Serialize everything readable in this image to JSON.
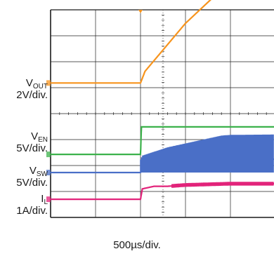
{
  "chart_data": {
    "type": "line",
    "title": "",
    "xlabel": "500µs/div.",
    "x_unit": "µs",
    "x_divisions": 8,
    "y_divisions": 8,
    "grid": true,
    "series": [
      {
        "name": "VOUT",
        "label_main": "V",
        "label_sub": "OUT",
        "scale": "2V/div.",
        "unit": "V",
        "color": "#f7941d",
        "ground_div": 5.18,
        "points": [
          [
            0,
            0
          ],
          [
            500,
            0
          ],
          [
            1000,
            0
          ],
          [
            1050,
            0.9
          ],
          [
            1500,
            4.6
          ],
          [
            2000,
            7.85
          ],
          [
            2500,
            7.9
          ],
          [
            3000,
            7.9
          ],
          [
            3500,
            7.9
          ],
          [
            4000,
            7.9
          ]
        ]
      },
      {
        "name": "VEN",
        "label_main": "V",
        "label_sub": "EN",
        "scale": "5V/div.",
        "unit": "V",
        "color": "#3bb14a",
        "ground_div": 2.43,
        "points": [
          [
            0,
            0
          ],
          [
            1000,
            0
          ],
          [
            1010,
            5.3
          ],
          [
            4000,
            5.3
          ]
        ]
      },
      {
        "name": "VSW",
        "label_main": "V",
        "label_sub": "SW",
        "scale": "5V/div.",
        "unit": "V",
        "color": "#4a6fc7",
        "ground_div": 1.73,
        "points": [
          [
            0,
            0
          ],
          [
            1000,
            0
          ],
          [
            1020,
            0.7
          ],
          [
            1300,
            1.6
          ],
          [
            2000,
            2.5
          ],
          [
            4000,
            2.8
          ]
        ],
        "ripple_from": 1000
      },
      {
        "name": "IL",
        "label_main": "I",
        "label_sub": "L",
        "scale": "1A/div.",
        "unit": "A",
        "color": "#e2237a",
        "ground_div": 0.7,
        "points": [
          [
            0,
            0
          ],
          [
            1000,
            0
          ],
          [
            1020,
            0.4
          ],
          [
            1150,
            0.5
          ],
          [
            1300,
            0.5
          ],
          [
            1500,
            0.55
          ],
          [
            2000,
            0.6
          ],
          [
            4000,
            0.6
          ]
        ],
        "ripple_from": 1350
      }
    ]
  }
}
